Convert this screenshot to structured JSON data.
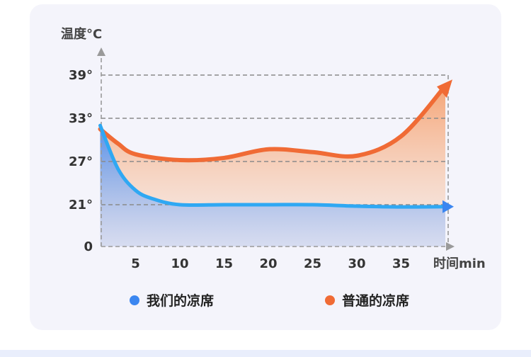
{
  "colors": {
    "ours": "#3b86f0",
    "ours_line": "#2fa8f3",
    "regular": "#f06b35",
    "regular_fill": "#f5a36a",
    "grid": "#8a8a8a",
    "axis": "#9a9a9a"
  },
  "chart_data": {
    "type": "area",
    "ylabel": "温度°C",
    "xlabel": "时间min",
    "x_ticks": [
      "5",
      "10",
      "15",
      "20",
      "25",
      "30",
      "35"
    ],
    "y_ticks": [
      {
        "value": 0,
        "label": "0"
      },
      {
        "value": 21,
        "label": "21°"
      },
      {
        "value": 27,
        "label": "27°"
      },
      {
        "value": 33,
        "label": "33°"
      },
      {
        "value": 39,
        "label": "39°"
      }
    ],
    "grid": true,
    "series": [
      {
        "name": "我们的凉席",
        "color": "#3b86f0",
        "points": [
          [
            1,
            32
          ],
          [
            3,
            26
          ],
          [
            5,
            23
          ],
          [
            7,
            21.8
          ],
          [
            10,
            21
          ],
          [
            15,
            21
          ],
          [
            20,
            21
          ],
          [
            25,
            21
          ],
          [
            30,
            20.3
          ],
          [
            35,
            19.9
          ],
          [
            40,
            20
          ]
        ]
      },
      {
        "name": "普通的凉席",
        "color": "#f06b35",
        "points": [
          [
            1,
            31.5
          ],
          [
            3,
            29.5
          ],
          [
            5,
            28
          ],
          [
            10,
            27.2
          ],
          [
            15,
            27.5
          ],
          [
            20,
            28.7
          ],
          [
            25,
            28.3
          ],
          [
            30,
            27.8
          ],
          [
            35,
            30.5
          ],
          [
            40,
            37.5
          ]
        ]
      }
    ]
  },
  "legend": [
    {
      "label": "我们的凉席",
      "color": "#3b86f0"
    },
    {
      "label": "普通的凉席",
      "color": "#f06b35"
    }
  ]
}
